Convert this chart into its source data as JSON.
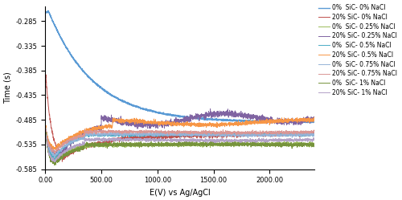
{
  "xlabel": "E(V) vs Ag/AgCl",
  "ylabel": "Time (s)",
  "xlim": [
    0,
    2400
  ],
  "ylim": [
    -0.585,
    -0.255
  ],
  "xticks": [
    0,
    500,
    1000,
    1500,
    2000
  ],
  "xtick_labels": [
    "0.00",
    "500.00",
    "1000.00",
    "1500.00",
    "2000.00"
  ],
  "yticks": [
    -0.585,
    -0.535,
    -0.485,
    -0.435,
    -0.385,
    -0.335,
    -0.285
  ],
  "series": [
    {
      "label": "0%  SiC- 0% NaCl",
      "color": "#5B9BD5",
      "lw": 1.0
    },
    {
      "label": "20% SiC- 0% NaCl",
      "color": "#C0504D",
      "lw": 0.7
    },
    {
      "label": "0%  SiC- 0.25% NaCl",
      "color": "#9BBB59",
      "lw": 0.7
    },
    {
      "label": "20% SiC- 0.25% NaCl",
      "color": "#8064A2",
      "lw": 0.7
    },
    {
      "label": "0%  SiC- 0.5% NaCl",
      "color": "#4BACC6",
      "lw": 0.7
    },
    {
      "label": "20% SiC- 0.5% NaCl",
      "color": "#F79646",
      "lw": 0.7
    },
    {
      "label": "0%  SiC- 0.75% NaCl",
      "color": "#95B3D7",
      "lw": 0.7
    },
    {
      "label": "20% SiC- 0.75% NaCl",
      "color": "#D99694",
      "lw": 0.7
    },
    {
      "label": "0%  SiC- 1% NaCl",
      "color": "#76933C",
      "lw": 0.7
    },
    {
      "label": "20% SiC- 1% NaCl",
      "color": "#B3A2C7",
      "lw": 0.7
    }
  ],
  "legend_fontsize": 5.5,
  "axis_label_fontsize": 7,
  "tick_fontsize": 6,
  "figsize": [
    5.0,
    2.49
  ],
  "dpi": 100
}
